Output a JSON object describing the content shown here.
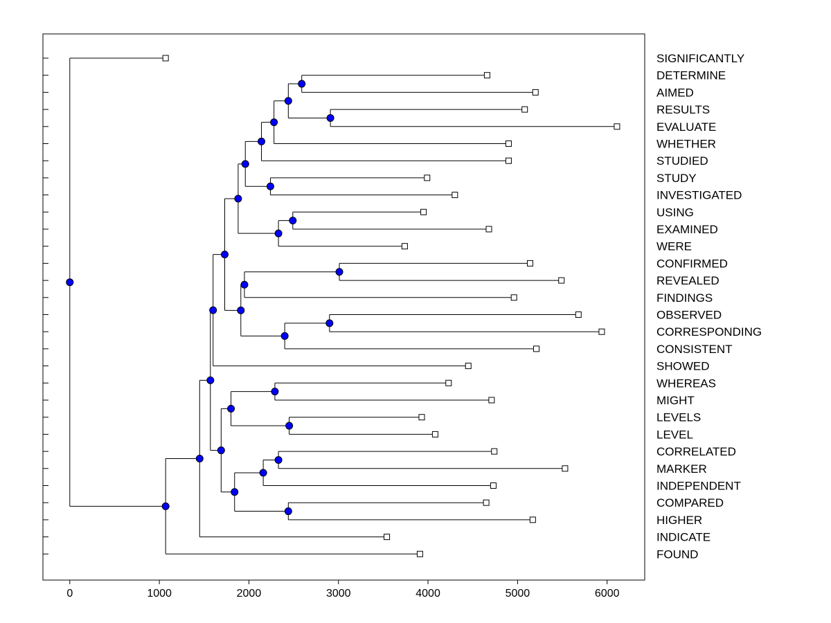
{
  "chart_data": {
    "type": "dendrogram",
    "orientation": "horizontal",
    "xlim": [
      -300,
      6420
    ],
    "x_ticks": [
      0,
      1000,
      2000,
      3000,
      4000,
      5000,
      6000
    ],
    "x_tick_labels": [
      "0",
      "1000",
      "2000",
      "3000",
      "4000",
      "5000",
      "6000"
    ],
    "leaves": [
      {
        "id": "L0",
        "label": "SIGNIFICANTLY",
        "x": 1070
      },
      {
        "id": "L1",
        "label": "DETERMINE",
        "x": 4660
      },
      {
        "id": "L2",
        "label": "AIMED",
        "x": 5200
      },
      {
        "id": "L3",
        "label": "RESULTS",
        "x": 5080
      },
      {
        "id": "L4",
        "label": "EVALUATE",
        "x": 6110
      },
      {
        "id": "L5",
        "label": "WHETHER",
        "x": 4900
      },
      {
        "id": "L6",
        "label": "STUDIED",
        "x": 4900
      },
      {
        "id": "L7",
        "label": "STUDY",
        "x": 3990
      },
      {
        "id": "L8",
        "label": "INVESTIGATED",
        "x": 4300
      },
      {
        "id": "L9",
        "label": "USING",
        "x": 3950
      },
      {
        "id": "L10",
        "label": "EXAMINED",
        "x": 4680
      },
      {
        "id": "L11",
        "label": "WERE",
        "x": 3740
      },
      {
        "id": "L12",
        "label": "CONFIRMED",
        "x": 5140
      },
      {
        "id": "L13",
        "label": "REVEALED",
        "x": 5490
      },
      {
        "id": "L14",
        "label": "FINDINGS",
        "x": 4960
      },
      {
        "id": "L15",
        "label": "OBSERVED",
        "x": 5680
      },
      {
        "id": "L16",
        "label": "CORRESPONDING",
        "x": 5940
      },
      {
        "id": "L17",
        "label": "CONSISTENT",
        "x": 5210
      },
      {
        "id": "L18",
        "label": "SHOWED",
        "x": 4450
      },
      {
        "id": "L19",
        "label": "WHEREAS",
        "x": 4230
      },
      {
        "id": "L20",
        "label": "MIGHT",
        "x": 4710
      },
      {
        "id": "L21",
        "label": "LEVELS",
        "x": 3930
      },
      {
        "id": "L22",
        "label": "LEVEL",
        "x": 4080
      },
      {
        "id": "L23",
        "label": "CORRELATED",
        "x": 4740
      },
      {
        "id": "L24",
        "label": "MARKER",
        "x": 5530
      },
      {
        "id": "L25",
        "label": "INDEPENDENT",
        "x": 4730
      },
      {
        "id": "L26",
        "label": "COMPARED",
        "x": 4650
      },
      {
        "id": "L27",
        "label": "HIGHER",
        "x": 5170
      },
      {
        "id": "L28",
        "label": "INDICATE",
        "x": 3540
      },
      {
        "id": "L29",
        "label": "FOUND",
        "x": 3910
      }
    ],
    "merges": [
      {
        "id": "N1",
        "x": 2590,
        "children": [
          "L1",
          "L2"
        ]
      },
      {
        "id": "N2",
        "x": 2910,
        "children": [
          "L3",
          "L4"
        ]
      },
      {
        "id": "N3",
        "x": 2440,
        "children": [
          "N1",
          "N2"
        ]
      },
      {
        "id": "N4",
        "x": 2280,
        "children": [
          "N3",
          "L5"
        ]
      },
      {
        "id": "N5",
        "x": 2140,
        "children": [
          "N4",
          "L6"
        ]
      },
      {
        "id": "N6",
        "x": 2240,
        "children": [
          "L7",
          "L8"
        ]
      },
      {
        "id": "N7",
        "x": 1960,
        "children": [
          "N5",
          "N6"
        ]
      },
      {
        "id": "N8",
        "x": 2490,
        "children": [
          "L9",
          "L10"
        ]
      },
      {
        "id": "N9",
        "x": 2330,
        "children": [
          "N8",
          "L11"
        ]
      },
      {
        "id": "N10",
        "x": 1880,
        "children": [
          "N7",
          "N9"
        ]
      },
      {
        "id": "N11",
        "x": 3010,
        "children": [
          "L12",
          "L13"
        ]
      },
      {
        "id": "N12",
        "x": 1950,
        "children": [
          "N11",
          "L14"
        ]
      },
      {
        "id": "N13",
        "x": 2900,
        "children": [
          "L15",
          "L16"
        ]
      },
      {
        "id": "N14",
        "x": 2400,
        "children": [
          "N13",
          "L17"
        ]
      },
      {
        "id": "N15",
        "x": 1910,
        "children": [
          "N12",
          "N14"
        ]
      },
      {
        "id": "N16",
        "x": 1730,
        "children": [
          "N10",
          "N15"
        ]
      },
      {
        "id": "N17",
        "x": 1600,
        "children": [
          "N16",
          "L18"
        ]
      },
      {
        "id": "N18",
        "x": 2290,
        "children": [
          "L19",
          "L20"
        ]
      },
      {
        "id": "N19",
        "x": 2450,
        "children": [
          "L21",
          "L22"
        ]
      },
      {
        "id": "N20",
        "x": 1800,
        "children": [
          "N18",
          "N19"
        ]
      },
      {
        "id": "N21",
        "x": 2330,
        "children": [
          "L23",
          "L24"
        ]
      },
      {
        "id": "N22",
        "x": 2160,
        "children": [
          "N21",
          "L25"
        ]
      },
      {
        "id": "N23",
        "x": 2440,
        "children": [
          "L26",
          "L27"
        ]
      },
      {
        "id": "N24",
        "x": 1840,
        "children": [
          "N22",
          "N23"
        ]
      },
      {
        "id": "N25",
        "x": 1690,
        "children": [
          "N20",
          "N24"
        ]
      },
      {
        "id": "N26",
        "x": 1570,
        "children": [
          "N17",
          "N25"
        ]
      },
      {
        "id": "N27",
        "x": 1450,
        "children": [
          "N26",
          "L28"
        ]
      },
      {
        "id": "N28",
        "x": 1070,
        "children": [
          "N27",
          "L29"
        ]
      },
      {
        "id": "N29",
        "x": 0,
        "children": [
          "L0",
          "N28"
        ]
      }
    ]
  }
}
